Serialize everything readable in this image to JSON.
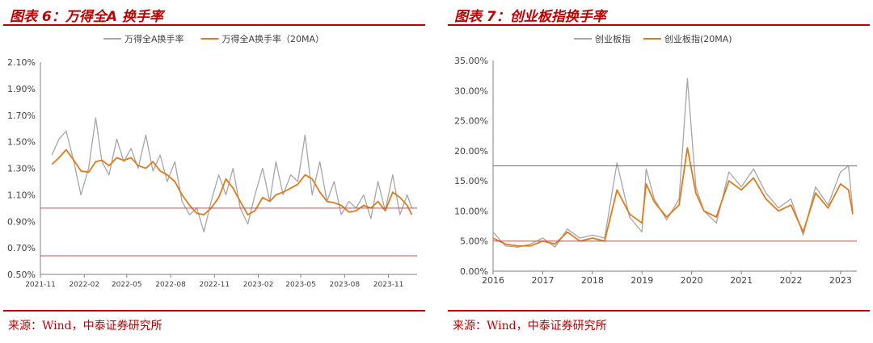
{
  "source_text": "来源：Wind，中泰证券研究所",
  "chart_data": [
    {
      "type": "line",
      "title": "图表 6：万得全A 换手率",
      "series": [
        {
          "name": "万得全A换手率",
          "color": "#a6a6a6",
          "x": [
            "2021-11-25",
            "2021-12-10",
            "2021-12-25",
            "2022-01-10",
            "2022-01-25",
            "2022-02-10",
            "2022-02-25",
            "2022-03-10",
            "2022-03-25",
            "2022-04-10",
            "2022-04-25",
            "2022-05-10",
            "2022-05-25",
            "2022-06-10",
            "2022-06-25",
            "2022-07-10",
            "2022-07-25",
            "2022-08-10",
            "2022-08-25",
            "2022-09-10",
            "2022-09-25",
            "2022-10-10",
            "2022-10-25",
            "2022-11-10",
            "2022-11-25",
            "2022-12-10",
            "2022-12-25",
            "2023-01-10",
            "2023-01-25",
            "2023-02-10",
            "2023-02-25",
            "2023-03-10",
            "2023-03-25",
            "2023-04-10",
            "2023-04-25",
            "2023-05-10",
            "2023-05-25",
            "2023-06-10",
            "2023-06-25",
            "2023-07-10",
            "2023-07-25",
            "2023-08-10",
            "2023-08-25",
            "2023-09-10",
            "2023-09-25",
            "2023-10-10",
            "2023-10-25",
            "2023-11-10",
            "2023-11-25",
            "2023-12-10",
            "2023-12-20"
          ],
          "values": [
            1.4,
            1.52,
            1.58,
            1.35,
            1.1,
            1.3,
            1.68,
            1.35,
            1.25,
            1.52,
            1.35,
            1.45,
            1.3,
            1.55,
            1.28,
            1.4,
            1.2,
            1.35,
            1.05,
            0.95,
            1.0,
            0.82,
            1.05,
            1.25,
            1.1,
            1.3,
            1.0,
            0.88,
            1.1,
            1.3,
            1.05,
            1.35,
            1.1,
            1.25,
            1.2,
            1.55,
            1.1,
            1.35,
            1.05,
            1.2,
            0.95,
            1.05,
            1.0,
            1.1,
            0.92,
            1.2,
            0.98,
            1.25,
            0.95,
            1.1,
            1.0
          ]
        },
        {
          "name": "万得全A换手率（20MA）",
          "color": "#e07b1a",
          "x": [
            "2021-11-25",
            "2021-12-10",
            "2021-12-25",
            "2022-01-10",
            "2022-01-25",
            "2022-02-10",
            "2022-02-25",
            "2022-03-10",
            "2022-03-25",
            "2022-04-10",
            "2022-04-25",
            "2022-05-10",
            "2022-05-25",
            "2022-06-10",
            "2022-06-25",
            "2022-07-10",
            "2022-07-25",
            "2022-08-10",
            "2022-08-25",
            "2022-09-10",
            "2022-09-25",
            "2022-10-10",
            "2022-10-25",
            "2022-11-10",
            "2022-11-25",
            "2022-12-10",
            "2022-12-25",
            "2023-01-10",
            "2023-01-25",
            "2023-02-10",
            "2023-02-25",
            "2023-03-10",
            "2023-03-25",
            "2023-04-10",
            "2023-04-25",
            "2023-05-10",
            "2023-05-25",
            "2023-06-10",
            "2023-06-25",
            "2023-07-10",
            "2023-07-25",
            "2023-08-10",
            "2023-08-25",
            "2023-09-10",
            "2023-09-25",
            "2023-10-10",
            "2023-10-25",
            "2023-11-10",
            "2023-11-25",
            "2023-12-10",
            "2023-12-20"
          ],
          "values": [
            1.33,
            1.38,
            1.44,
            1.36,
            1.28,
            1.27,
            1.35,
            1.36,
            1.32,
            1.38,
            1.36,
            1.38,
            1.32,
            1.3,
            1.35,
            1.28,
            1.25,
            1.2,
            1.1,
            1.02,
            0.96,
            0.95,
            1.0,
            1.08,
            1.22,
            1.15,
            1.05,
            0.95,
            0.98,
            1.08,
            1.05,
            1.1,
            1.12,
            1.15,
            1.18,
            1.25,
            1.22,
            1.12,
            1.05,
            1.04,
            1.02,
            0.97,
            0.98,
            1.02,
            1.0,
            1.05,
            0.98,
            1.12,
            1.08,
            1.02,
            0.95
          ]
        }
      ],
      "x_ticks": [
        "2021-11",
        "2022-02",
        "2022-05",
        "2022-08",
        "2022-11",
        "2023-02",
        "2023-05",
        "2023-08",
        "2023-11"
      ],
      "x_range": [
        "2021-11-01",
        "2023-12-31"
      ],
      "y_ticks": [
        "0.50%",
        "0.70%",
        "0.90%",
        "1.10%",
        "1.30%",
        "1.50%",
        "1.70%",
        "1.90%",
        "2.10%"
      ],
      "ylim": [
        0.5,
        2.1
      ],
      "ref_lines": [
        1.0,
        0.64
      ],
      "ref_color": "#c0504d",
      "legend": "top-center"
    },
    {
      "type": "line",
      "title": "图表 7：创业板指换手率",
      "series": [
        {
          "name": "创业板指",
          "color": "#a6a6a6",
          "x": [
            "2016-01",
            "2016-04",
            "2016-07",
            "2016-10",
            "2017-01",
            "2017-04",
            "2017-07",
            "2017-10",
            "2018-01",
            "2018-04",
            "2018-07",
            "2018-10",
            "2019-01",
            "2019-02",
            "2019-04",
            "2019-07",
            "2019-10",
            "2019-12",
            "2020-02",
            "2020-04",
            "2020-07",
            "2020-10",
            "2021-01",
            "2021-04",
            "2021-07",
            "2021-10",
            "2022-01",
            "2022-04",
            "2022-07",
            "2022-10",
            "2023-01",
            "2023-03",
            "2023-04"
          ],
          "values": [
            6.5,
            4.2,
            4.0,
            4.5,
            5.5,
            4.0,
            7.0,
            5.5,
            6.0,
            5.5,
            18.0,
            9.0,
            6.5,
            17.0,
            12.0,
            8.5,
            12.0,
            32.0,
            14.0,
            10.0,
            8.0,
            16.5,
            14.0,
            17.0,
            13.0,
            10.5,
            12.0,
            6.0,
            14.0,
            11.0,
            16.5,
            17.5,
            10.0
          ]
        },
        {
          "name": "创业板指(20MA)",
          "color": "#e07b1a",
          "x": [
            "2016-01",
            "2016-04",
            "2016-07",
            "2016-10",
            "2017-01",
            "2017-04",
            "2017-07",
            "2017-10",
            "2018-01",
            "2018-04",
            "2018-07",
            "2018-10",
            "2019-01",
            "2019-02",
            "2019-04",
            "2019-07",
            "2019-10",
            "2019-12",
            "2020-02",
            "2020-04",
            "2020-07",
            "2020-10",
            "2021-01",
            "2021-04",
            "2021-07",
            "2021-10",
            "2022-01",
            "2022-04",
            "2022-07",
            "2022-10",
            "2023-01",
            "2023-03",
            "2023-04"
          ],
          "values": [
            5.5,
            4.5,
            4.2,
            4.2,
            5.0,
            4.5,
            6.5,
            5.0,
            5.5,
            5.0,
            13.5,
            9.5,
            8.0,
            14.5,
            11.5,
            9.0,
            11.0,
            20.5,
            13.0,
            10.0,
            9.0,
            15.0,
            13.5,
            15.5,
            12.0,
            10.0,
            11.0,
            6.5,
            13.0,
            10.5,
            14.5,
            13.5,
            9.5
          ]
        }
      ],
      "x_ticks": [
        "2016",
        "2017",
        "2018",
        "2019",
        "2020",
        "2021",
        "2022",
        "2023"
      ],
      "x_range": [
        "2016-01",
        "2023-05"
      ],
      "y_ticks": [
        "0.00%",
        "5.00%",
        "10.00%",
        "15.00%",
        "20.00%",
        "25.00%",
        "30.00%",
        "35.00%"
      ],
      "ylim": [
        0,
        35
      ],
      "ref_lines": [
        17.5,
        5.0
      ],
      "ref_color": "#c0504d",
      "legend": "top-center"
    }
  ]
}
